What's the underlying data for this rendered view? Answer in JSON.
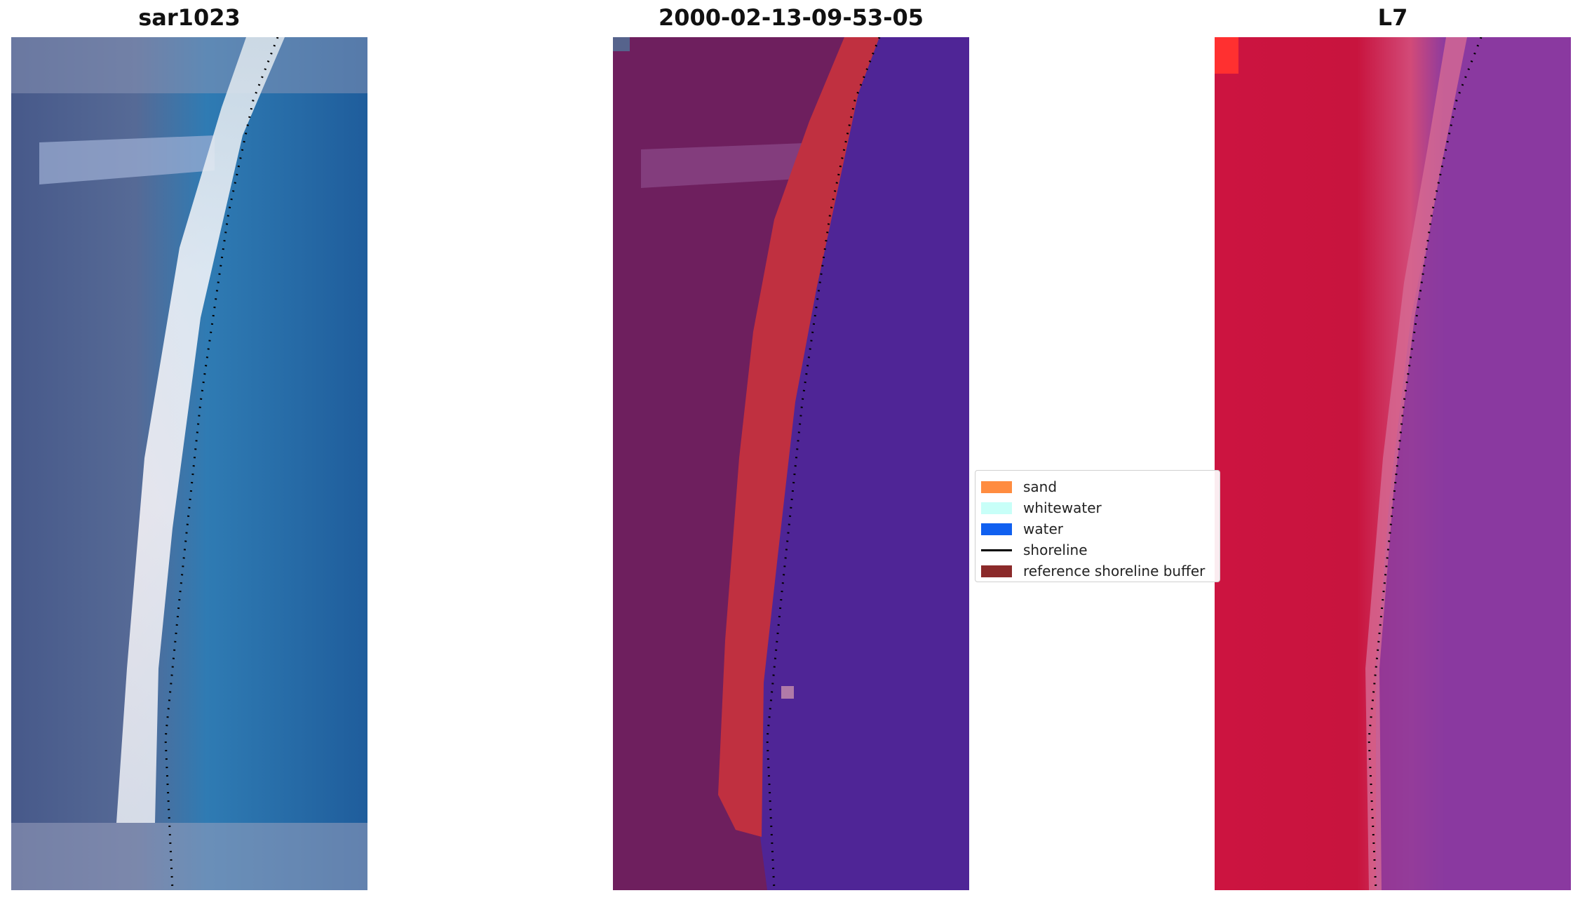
{
  "panels": [
    {
      "title": "sar1023"
    },
    {
      "title": "2000-02-13-09-53-05"
    },
    {
      "title": "L7"
    }
  ],
  "legend": {
    "items": [
      {
        "label": "sand",
        "color": "#ff8c40",
        "kind": "patch"
      },
      {
        "label": "whitewater",
        "color": "#c8fff8",
        "kind": "patch"
      },
      {
        "label": "water",
        "color": "#1060f0",
        "kind": "patch"
      },
      {
        "label": "shoreline",
        "color": "#000000",
        "kind": "line"
      },
      {
        "label": "reference shoreline buffer",
        "color": "#8b2a2a",
        "kind": "patch"
      }
    ]
  },
  "colors": {
    "rgb_land": "#4b5e8c",
    "rgb_water": "#2268a6",
    "classified_land": "#6e1f5e",
    "classified_water": "#4f2596",
    "buffer": "#c03040",
    "ndwi_land": "#c8143e",
    "ndwi_water": "#8a3aa0"
  }
}
